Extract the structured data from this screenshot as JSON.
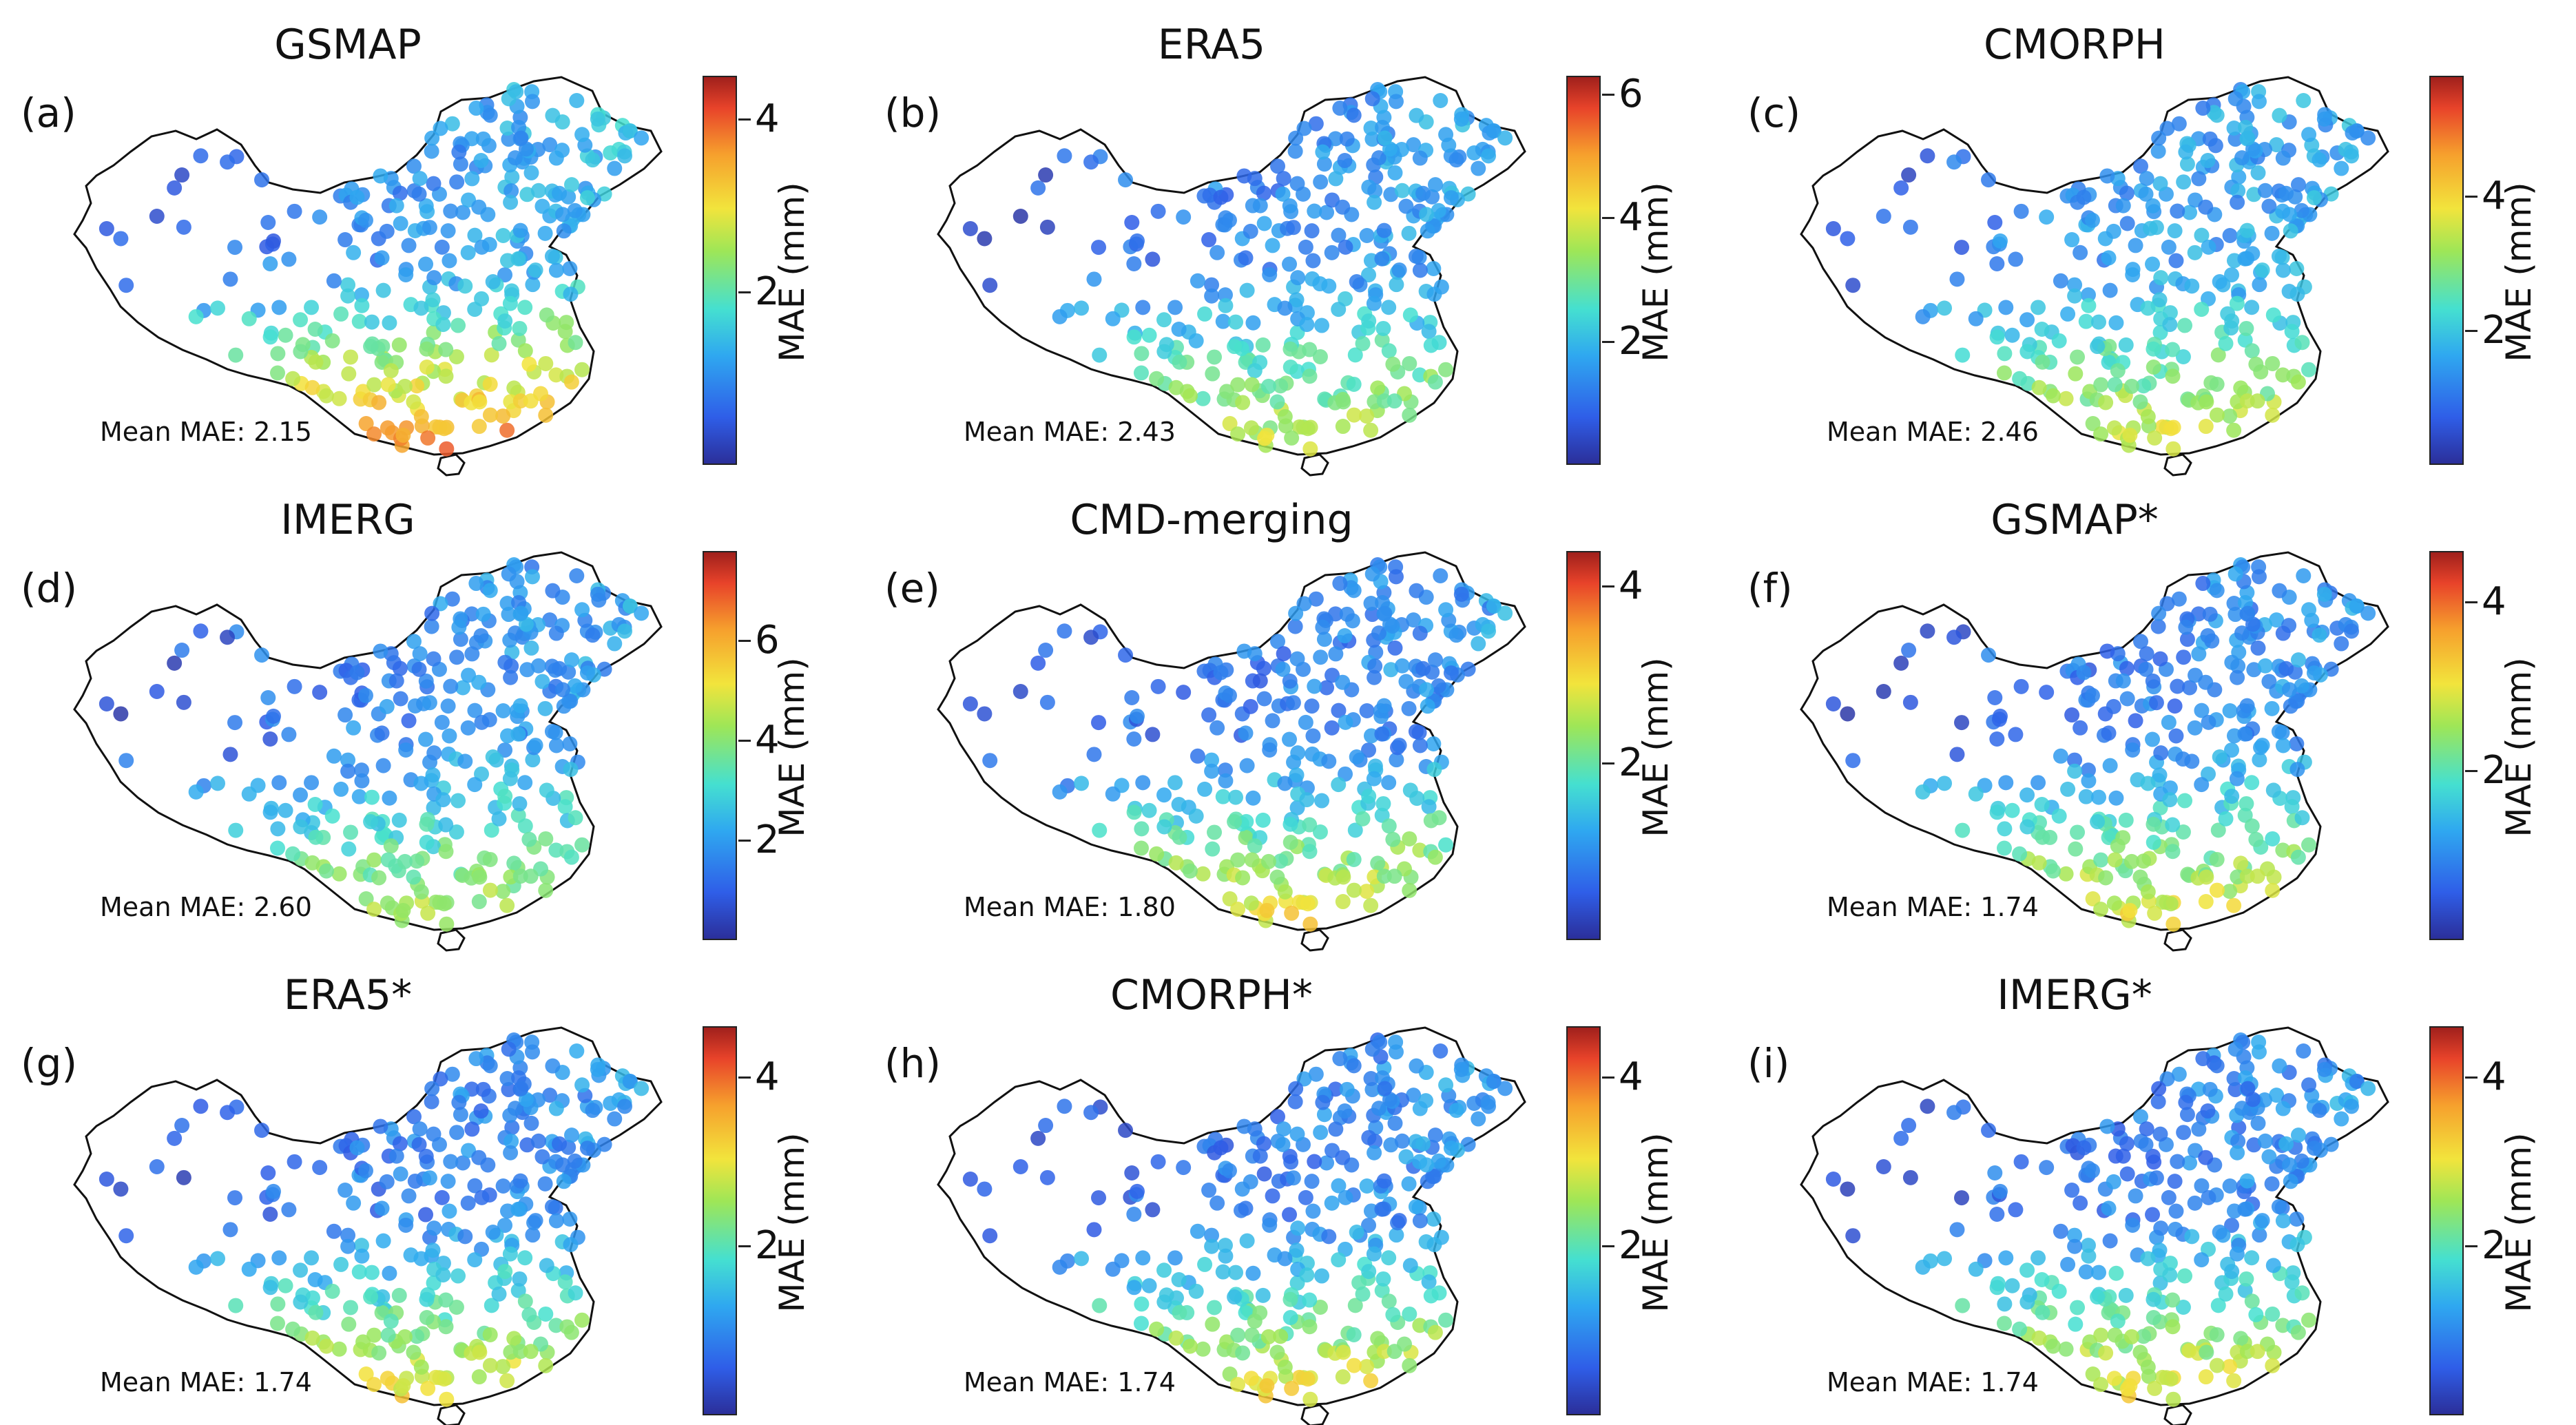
{
  "figure": {
    "colorbar_label": "MAE (mm)",
    "mean_prefix": "Mean MAE:"
  },
  "chart_data": [
    {
      "type": "scatter",
      "label": "(a)",
      "title": "GSMAP",
      "mean_mae": "2.15",
      "colorbar_max": 4.5,
      "colorbar_ticks": [
        2,
        4
      ],
      "colorbar_tick_labels": [
        "2",
        "4"
      ],
      "colorbar_label": "MAE (mm)",
      "pattern": "gsmap"
    },
    {
      "type": "scatter",
      "label": "(b)",
      "title": "ERA5",
      "mean_mae": "2.43",
      "colorbar_max": 6.3,
      "colorbar_ticks": [
        2,
        4,
        6
      ],
      "colorbar_tick_labels": [
        "2",
        "4",
        "6"
      ],
      "colorbar_label": "MAE (mm)",
      "pattern": "era5"
    },
    {
      "type": "scatter",
      "label": "(c)",
      "title": "CMORPH",
      "mean_mae": "2.46",
      "colorbar_max": 5.8,
      "colorbar_ticks": [
        2,
        4
      ],
      "colorbar_tick_labels": [
        "2",
        "4"
      ],
      "colorbar_label": "MAE (mm)",
      "pattern": "cmorph"
    },
    {
      "type": "scatter",
      "label": "(d)",
      "title": "IMERG",
      "mean_mae": "2.60",
      "colorbar_max": 7.8,
      "colorbar_ticks": [
        2,
        4,
        6
      ],
      "colorbar_tick_labels": [
        "2",
        "4",
        "6"
      ],
      "colorbar_label": "MAE (mm)",
      "pattern": "imerg"
    },
    {
      "type": "scatter",
      "label": "(e)",
      "title": "CMD-merging",
      "mean_mae": "1.80",
      "colorbar_max": 4.4,
      "colorbar_ticks": [
        2,
        4
      ],
      "colorbar_tick_labels": [
        "2",
        "4"
      ],
      "colorbar_label": "MAE (mm)",
      "pattern": "merge"
    },
    {
      "type": "scatter",
      "label": "(f)",
      "title": "GSMAP*",
      "mean_mae": "1.74",
      "colorbar_max": 4.6,
      "colorbar_ticks": [
        2,
        4
      ],
      "colorbar_tick_labels": [
        "2",
        "4"
      ],
      "colorbar_label": "MAE (mm)",
      "pattern": "merge"
    },
    {
      "type": "scatter",
      "label": "(g)",
      "title": "ERA5*",
      "mean_mae": "1.74",
      "colorbar_max": 4.6,
      "colorbar_ticks": [
        2,
        4
      ],
      "colorbar_tick_labels": [
        "2",
        "4"
      ],
      "colorbar_label": "MAE (mm)",
      "pattern": "merge"
    },
    {
      "type": "scatter",
      "label": "(h)",
      "title": "CMORPH*",
      "mean_mae": "1.74",
      "colorbar_max": 4.6,
      "colorbar_ticks": [
        2,
        4
      ],
      "colorbar_tick_labels": [
        "2",
        "4"
      ],
      "colorbar_label": "MAE (mm)",
      "pattern": "merge"
    },
    {
      "type": "scatter",
      "label": "(i)",
      "title": "IMERG*",
      "mean_mae": "1.74",
      "colorbar_max": 4.6,
      "colorbar_ticks": [
        2,
        4
      ],
      "colorbar_tick_labels": [
        "2",
        "4"
      ],
      "colorbar_label": "MAE (mm)",
      "pattern": "merge"
    }
  ]
}
